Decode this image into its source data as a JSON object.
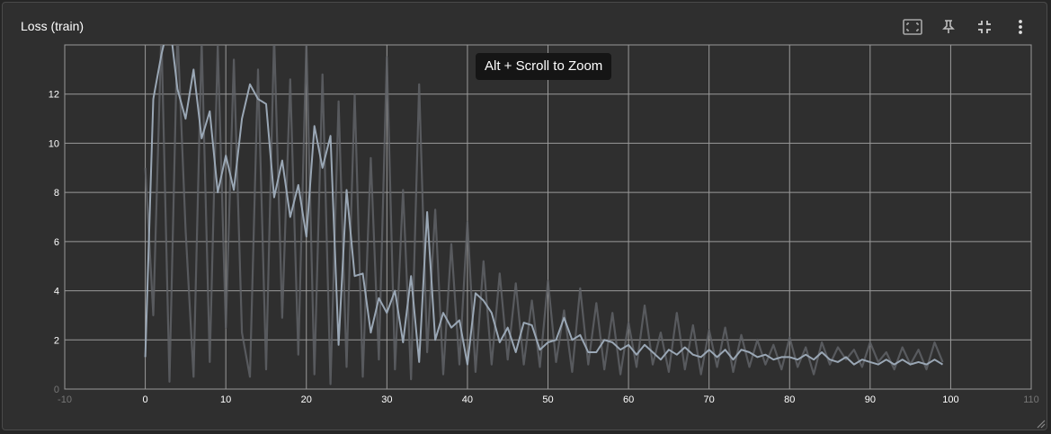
{
  "card": {
    "title": "Loss (train)",
    "tooltip": "Alt + Scroll to Zoom",
    "toolbar": [
      {
        "name": "fit-to-data-icon"
      },
      {
        "name": "pin-icon"
      },
      {
        "name": "collapse-icon"
      },
      {
        "name": "more-vert-icon"
      }
    ]
  },
  "colors": {
    "background": "#2f2f2f",
    "grid": "#9a9a9a",
    "smoothed": "#9aa7b5",
    "raw": "#5f6266"
  },
  "chart_data": {
    "type": "line",
    "title": "",
    "xlabel": "",
    "ylabel": "",
    "xlim": [
      -10,
      110
    ],
    "ylim": [
      0,
      14
    ],
    "x_ticks": [
      -10,
      0,
      10,
      20,
      30,
      40,
      50,
      60,
      70,
      80,
      90,
      100,
      110
    ],
    "y_ticks": [
      0,
      2,
      4,
      6,
      8,
      10,
      12
    ],
    "grid": true,
    "legend": "none",
    "series": [
      {
        "name": "",
        "role": "smoothed",
        "x": [
          0,
          1,
          2,
          3,
          4,
          5,
          6,
          7,
          8,
          9,
          10,
          11,
          12,
          13,
          14,
          15,
          16,
          17,
          18,
          19,
          20,
          21,
          22,
          23,
          24,
          25,
          26,
          27,
          28,
          29,
          30,
          31,
          32,
          33,
          34,
          35,
          36,
          37,
          38,
          39,
          40,
          41,
          42,
          43,
          44,
          45,
          46,
          47,
          48,
          49,
          50,
          51,
          52,
          53,
          54,
          55,
          56,
          57,
          58,
          59,
          60,
          61,
          62,
          63,
          64,
          65,
          66,
          67,
          68,
          69,
          70,
          71,
          72,
          73,
          74,
          75,
          76,
          77,
          78,
          79,
          80,
          81,
          82,
          83,
          84,
          85,
          86,
          87,
          88,
          89,
          90,
          91,
          92,
          93,
          94,
          95,
          96,
          97,
          98,
          99
        ],
        "y": [
          1.3,
          11.8,
          13.6,
          15.0,
          12.2,
          11.0,
          13.0,
          10.2,
          11.3,
          8.0,
          9.5,
          8.1,
          11.0,
          12.4,
          11.8,
          11.6,
          7.8,
          9.3,
          7.0,
          8.3,
          6.2,
          10.7,
          9.0,
          10.3,
          1.8,
          8.1,
          4.6,
          4.7,
          2.3,
          3.7,
          3.1,
          4.0,
          1.9,
          4.6,
          1.1,
          7.2,
          2.0,
          3.1,
          2.5,
          2.8,
          1.0,
          3.9,
          3.6,
          3.1,
          1.9,
          2.5,
          1.5,
          2.7,
          2.6,
          1.6,
          1.9,
          2.0,
          2.9,
          2.0,
          2.2,
          1.5,
          1.5,
          2.0,
          1.9,
          1.6,
          1.8,
          1.4,
          1.8,
          1.5,
          1.2,
          1.6,
          1.4,
          1.7,
          1.4,
          1.3,
          1.6,
          1.3,
          1.6,
          1.2,
          1.6,
          1.5,
          1.3,
          1.4,
          1.2,
          1.3,
          1.3,
          1.2,
          1.4,
          1.2,
          1.5,
          1.2,
          1.1,
          1.3,
          1.0,
          1.2,
          1.1,
          1.0,
          1.2,
          1.0,
          1.2,
          1.0,
          1.1,
          1.0,
          1.2,
          1.0
        ]
      },
      {
        "name": "",
        "role": "raw",
        "x": [
          0,
          1,
          2,
          3,
          4,
          5,
          6,
          7,
          8,
          9,
          10,
          11,
          12,
          13,
          14,
          15,
          16,
          17,
          18,
          19,
          20,
          21,
          22,
          23,
          24,
          25,
          26,
          27,
          28,
          29,
          30,
          31,
          32,
          33,
          34,
          35,
          36,
          37,
          38,
          39,
          40,
          41,
          42,
          43,
          44,
          45,
          46,
          47,
          48,
          49,
          50,
          51,
          52,
          53,
          54,
          55,
          56,
          57,
          58,
          59,
          60,
          61,
          62,
          63,
          64,
          65,
          66,
          67,
          68,
          69,
          70,
          71,
          72,
          73,
          74,
          75,
          76,
          77,
          78,
          79,
          80,
          81,
          82,
          83,
          84,
          85,
          86,
          87,
          88,
          89,
          90,
          91,
          92,
          93,
          94,
          95,
          96,
          97,
          98,
          99
        ],
        "y": [
          9.0,
          3.0,
          14.5,
          0.3,
          14.6,
          6.5,
          0.5,
          14.2,
          1.1,
          14.0,
          2.5,
          13.4,
          2.3,
          0.5,
          13.0,
          0.8,
          14.4,
          2.9,
          12.6,
          1.4,
          14.1,
          0.6,
          12.8,
          0.2,
          11.7,
          0.9,
          12.0,
          0.5,
          9.4,
          1.2,
          13.5,
          0.8,
          8.1,
          0.4,
          12.4,
          1.5,
          7.3,
          0.6,
          5.9,
          1.0,
          6.8,
          0.7,
          5.2,
          1.0,
          4.7,
          1.2,
          4.3,
          1.0,
          3.6,
          0.9,
          4.4,
          1.1,
          3.2,
          0.7,
          4.1,
          1.0,
          3.5,
          0.8,
          3.1,
          0.6,
          2.7,
          0.9,
          3.4,
          1.0,
          2.3,
          0.7,
          3.1,
          0.8,
          2.6,
          0.6,
          2.4,
          0.9,
          2.5,
          0.7,
          2.2,
          0.9,
          2.0,
          1.0,
          1.8,
          0.8,
          2.1,
          0.9,
          1.7,
          0.6,
          1.9,
          1.0,
          1.7,
          1.2,
          1.6,
          0.9,
          1.9,
          1.1,
          1.5,
          0.8,
          1.7,
          1.0,
          1.6,
          0.8,
          1.9,
          1.1
        ]
      }
    ]
  }
}
